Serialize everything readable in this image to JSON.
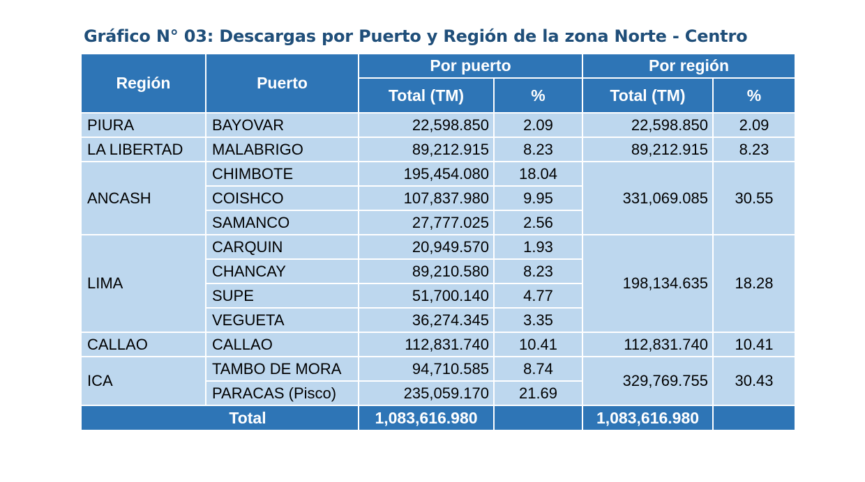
{
  "title": "Gráfico N° 03: Descargas por Puerto y Región de la zona Norte - Centro",
  "headers": {
    "region": "Región",
    "puerto": "Puerto",
    "por_puerto": "Por puerto",
    "por_region": "Por región",
    "total_tm": "Total (TM)",
    "pct": "%"
  },
  "regions": [
    {
      "name": "PIURA",
      "total": "22,598.850",
      "pct": "2.09",
      "ports": [
        {
          "name": "BAYOVAR",
          "total": "22,598.850",
          "pct": "2.09"
        }
      ]
    },
    {
      "name": "LA LIBERTAD",
      "total": "89,212.915",
      "pct": "8.23",
      "ports": [
        {
          "name": "MALABRIGO",
          "total": "89,212.915",
          "pct": "8.23"
        }
      ]
    },
    {
      "name": "ANCASH",
      "total": "331,069.085",
      "pct": "30.55",
      "ports": [
        {
          "name": "CHIMBOTE",
          "total": "195,454.080",
          "pct": "18.04"
        },
        {
          "name": "COISHCO",
          "total": "107,837.980",
          "pct": "9.95"
        },
        {
          "name": "SAMANCO",
          "total": "27,777.025",
          "pct": "2.56"
        }
      ]
    },
    {
      "name": "LIMA",
      "total": "198,134.635",
      "pct": "18.28",
      "ports": [
        {
          "name": "CARQUIN",
          "total": "20,949.570",
          "pct": "1.93"
        },
        {
          "name": "CHANCAY",
          "total": "89,210.580",
          "pct": "8.23"
        },
        {
          "name": "SUPE",
          "total": "51,700.140",
          "pct": "4.77"
        },
        {
          "name": "VEGUETA",
          "total": "36,274.345",
          "pct": "3.35"
        }
      ]
    },
    {
      "name": "CALLAO",
      "total": "112,831.740",
      "pct": "10.41",
      "ports": [
        {
          "name": "CALLAO",
          "total": "112,831.740",
          "pct": "10.41"
        }
      ]
    },
    {
      "name": "ICA",
      "total": "329,769.755",
      "pct": "30.43",
      "ports": [
        {
          "name": "TAMBO DE MORA",
          "total": "94,710.585",
          "pct": "8.74"
        },
        {
          "name": "PARACAS (Pisco)",
          "total": "235,059.170",
          "pct": "21.69"
        }
      ]
    }
  ],
  "footer": {
    "label": "Total",
    "por_puerto_total": "1,083,616.980",
    "por_region_total": "1,083,616.980"
  },
  "colors": {
    "title": "#1f4e79",
    "header_bg": "#2e75b6",
    "body_bg": "#bdd7ee",
    "border": "#ffffff"
  }
}
